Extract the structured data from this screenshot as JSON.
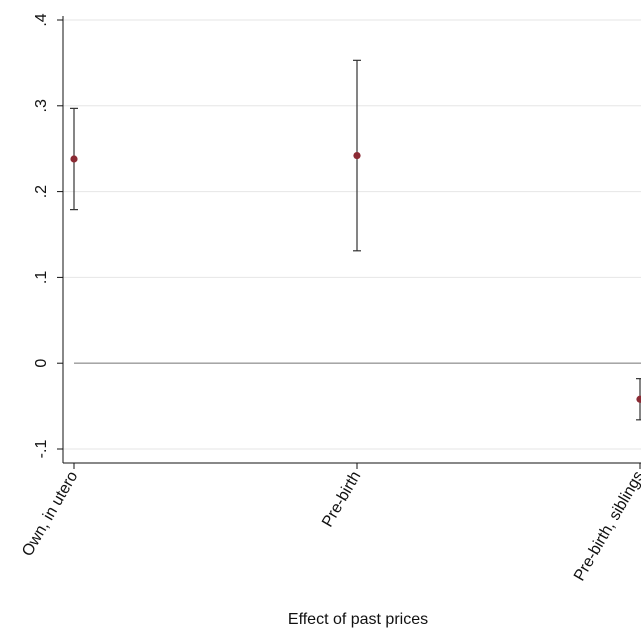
{
  "chart_data": {
    "type": "scatter",
    "subtype": "coefficient-plot-with-error-bars",
    "title": "",
    "xlabel": "Effect of past prices",
    "ylabel": "",
    "categories": [
      "Own, in utero",
      "Pre-birth",
      "Pre-birth, siblings"
    ],
    "estimates": [
      0.238,
      0.242,
      -0.042
    ],
    "ci_lower": [
      0.179,
      0.131,
      -0.066
    ],
    "ci_upper": [
      0.297,
      0.353,
      -0.018
    ],
    "ylim": [
      -0.1,
      0.4
    ],
    "yticks": [
      -0.1,
      0,
      0.1,
      0.2,
      0.3,
      0.4
    ],
    "ytick_labels": [
      "-.1",
      "0",
      ".1",
      ".2",
      ".3",
      ".4"
    ],
    "reference_line": 0,
    "grid": true,
    "legend": "none",
    "colors": {
      "marker": "#8b2a34",
      "ci": "#333333",
      "reference_line": "#999999",
      "grid": "#e6e6e6",
      "axis": "#111111"
    }
  }
}
